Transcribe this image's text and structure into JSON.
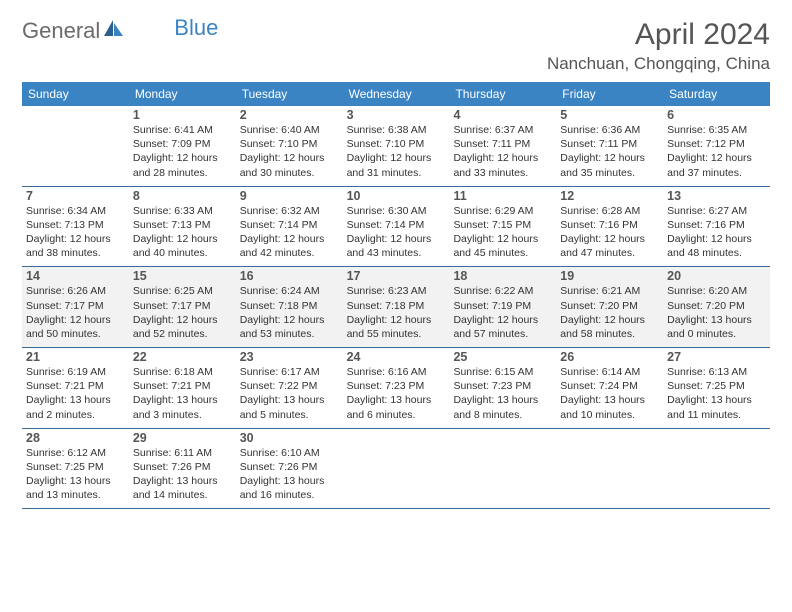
{
  "logo": {
    "text1": "General",
    "text2": "Blue"
  },
  "title": "April 2024",
  "location": "Nanchuan, Chongqing, China",
  "colors": {
    "header_bg": "#3b84c4",
    "row_border": "#3b6a92",
    "alt_bg": "#f2f2f2",
    "text": "#333333",
    "title_color": "#555555"
  },
  "day_labels": [
    "Sunday",
    "Monday",
    "Tuesday",
    "Wednesday",
    "Thursday",
    "Friday",
    "Saturday"
  ],
  "start_weekday": 1,
  "alt_weeks": [
    2
  ],
  "days": [
    {
      "n": 1,
      "sr": "6:41 AM",
      "ss": "7:09 PM",
      "dl": "12 hours and 28 minutes."
    },
    {
      "n": 2,
      "sr": "6:40 AM",
      "ss": "7:10 PM",
      "dl": "12 hours and 30 minutes."
    },
    {
      "n": 3,
      "sr": "6:38 AM",
      "ss": "7:10 PM",
      "dl": "12 hours and 31 minutes."
    },
    {
      "n": 4,
      "sr": "6:37 AM",
      "ss": "7:11 PM",
      "dl": "12 hours and 33 minutes."
    },
    {
      "n": 5,
      "sr": "6:36 AM",
      "ss": "7:11 PM",
      "dl": "12 hours and 35 minutes."
    },
    {
      "n": 6,
      "sr": "6:35 AM",
      "ss": "7:12 PM",
      "dl": "12 hours and 37 minutes."
    },
    {
      "n": 7,
      "sr": "6:34 AM",
      "ss": "7:13 PM",
      "dl": "12 hours and 38 minutes."
    },
    {
      "n": 8,
      "sr": "6:33 AM",
      "ss": "7:13 PM",
      "dl": "12 hours and 40 minutes."
    },
    {
      "n": 9,
      "sr": "6:32 AM",
      "ss": "7:14 PM",
      "dl": "12 hours and 42 minutes."
    },
    {
      "n": 10,
      "sr": "6:30 AM",
      "ss": "7:14 PM",
      "dl": "12 hours and 43 minutes."
    },
    {
      "n": 11,
      "sr": "6:29 AM",
      "ss": "7:15 PM",
      "dl": "12 hours and 45 minutes."
    },
    {
      "n": 12,
      "sr": "6:28 AM",
      "ss": "7:16 PM",
      "dl": "12 hours and 47 minutes."
    },
    {
      "n": 13,
      "sr": "6:27 AM",
      "ss": "7:16 PM",
      "dl": "12 hours and 48 minutes."
    },
    {
      "n": 14,
      "sr": "6:26 AM",
      "ss": "7:17 PM",
      "dl": "12 hours and 50 minutes."
    },
    {
      "n": 15,
      "sr": "6:25 AM",
      "ss": "7:17 PM",
      "dl": "12 hours and 52 minutes."
    },
    {
      "n": 16,
      "sr": "6:24 AM",
      "ss": "7:18 PM",
      "dl": "12 hours and 53 minutes."
    },
    {
      "n": 17,
      "sr": "6:23 AM",
      "ss": "7:18 PM",
      "dl": "12 hours and 55 minutes."
    },
    {
      "n": 18,
      "sr": "6:22 AM",
      "ss": "7:19 PM",
      "dl": "12 hours and 57 minutes."
    },
    {
      "n": 19,
      "sr": "6:21 AM",
      "ss": "7:20 PM",
      "dl": "12 hours and 58 minutes."
    },
    {
      "n": 20,
      "sr": "6:20 AM",
      "ss": "7:20 PM",
      "dl": "13 hours and 0 minutes."
    },
    {
      "n": 21,
      "sr": "6:19 AM",
      "ss": "7:21 PM",
      "dl": "13 hours and 2 minutes."
    },
    {
      "n": 22,
      "sr": "6:18 AM",
      "ss": "7:21 PM",
      "dl": "13 hours and 3 minutes."
    },
    {
      "n": 23,
      "sr": "6:17 AM",
      "ss": "7:22 PM",
      "dl": "13 hours and 5 minutes."
    },
    {
      "n": 24,
      "sr": "6:16 AM",
      "ss": "7:23 PM",
      "dl": "13 hours and 6 minutes."
    },
    {
      "n": 25,
      "sr": "6:15 AM",
      "ss": "7:23 PM",
      "dl": "13 hours and 8 minutes."
    },
    {
      "n": 26,
      "sr": "6:14 AM",
      "ss": "7:24 PM",
      "dl": "13 hours and 10 minutes."
    },
    {
      "n": 27,
      "sr": "6:13 AM",
      "ss": "7:25 PM",
      "dl": "13 hours and 11 minutes."
    },
    {
      "n": 28,
      "sr": "6:12 AM",
      "ss": "7:25 PM",
      "dl": "13 hours and 13 minutes."
    },
    {
      "n": 29,
      "sr": "6:11 AM",
      "ss": "7:26 PM",
      "dl": "13 hours and 14 minutes."
    },
    {
      "n": 30,
      "sr": "6:10 AM",
      "ss": "7:26 PM",
      "dl": "13 hours and 16 minutes."
    }
  ]
}
